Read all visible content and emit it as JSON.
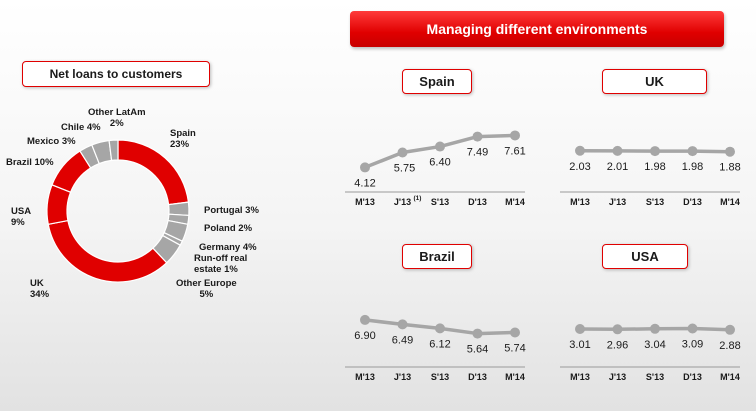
{
  "banner": {
    "title": "Managing different environments"
  },
  "colors": {
    "accent": "#e00000",
    "series": "#a6a6a6",
    "gray_slice": "#a6a6a6"
  },
  "chart_data": [
    {
      "type": "pie",
      "title": "Net loans to customers",
      "donut": true,
      "slices": [
        {
          "label": "Spain",
          "value": 23,
          "display": "Spain 23%",
          "color": "#e00000"
        },
        {
          "label": "Portugal",
          "value": 3,
          "display": "Portugal 3%",
          "color": "#a6a6a6"
        },
        {
          "label": "Poland",
          "value": 2,
          "display": "Poland 2%",
          "color": "#a6a6a6"
        },
        {
          "label": "Germany",
          "value": 4,
          "display": "Germany 4%",
          "color": "#a6a6a6"
        },
        {
          "label": "Run-off real estate",
          "value": 1,
          "display": "Run-off real estate 1%",
          "color": "#a6a6a6"
        },
        {
          "label": "Other Europe",
          "value": 5,
          "display": "Other Europe 5%",
          "color": "#a6a6a6"
        },
        {
          "label": "UK",
          "value": 34,
          "display": "UK 34%",
          "color": "#e00000"
        },
        {
          "label": "USA",
          "value": 9,
          "display": "USA 9%",
          "color": "#e00000"
        },
        {
          "label": "Brazil",
          "value": 10,
          "display": "Brazil 10%",
          "color": "#e00000"
        },
        {
          "label": "Mexico",
          "value": 3,
          "display": "Mexico 3%",
          "color": "#a6a6a6"
        },
        {
          "label": "Chile",
          "value": 4,
          "display": "Chile 4%",
          "color": "#a6a6a6"
        },
        {
          "label": "Other LatAm",
          "value": 2,
          "display": "Other LatAm 2%",
          "color": "#a6a6a6"
        }
      ],
      "label_lines": {
        "spain": [
          "Spain",
          "23%"
        ],
        "portugal": [
          "Portugal 3%"
        ],
        "poland": [
          "Poland 2%"
        ],
        "germany": [
          "Germany 4%"
        ],
        "runoff": [
          "Run-off real",
          "estate 1%"
        ],
        "other_europe": [
          "Other Europe",
          "5%"
        ],
        "uk": [
          "UK",
          "34%"
        ],
        "usa": [
          "USA",
          "9%"
        ],
        "brazil": [
          "Brazil 10%"
        ],
        "mexico": [
          "Mexico 3%"
        ],
        "chile": [
          "Chile 4%"
        ],
        "other_latam": [
          "Other LatAm",
          "2%"
        ]
      }
    },
    {
      "type": "line",
      "title": "Spain",
      "categories": [
        "M'13",
        "J'13",
        "S'13",
        "D'13",
        "M'14"
      ],
      "category_notes": [
        "",
        "(1)",
        "",
        "",
        ""
      ],
      "values": [
        4.12,
        5.75,
        6.4,
        7.49,
        7.61
      ],
      "value_labels": [
        "4.12",
        "5.75",
        "6.40",
        "7.49",
        "7.61"
      ],
      "label_position": [
        "below",
        "below",
        "below",
        "below",
        "below"
      ],
      "ylim": [
        2.2,
        9.3
      ]
    },
    {
      "type": "line",
      "title": "UK",
      "categories": [
        "M'13",
        "J'13",
        "S'13",
        "D'13",
        "M'14"
      ],
      "values": [
        2.03,
        2.01,
        1.98,
        1.98,
        1.88
      ],
      "value_labels": [
        "2.03",
        "2.01",
        "1.98",
        "1.98",
        "1.88"
      ],
      "label_position": [
        "below",
        "below",
        "below",
        "below",
        "below"
      ],
      "ylim": [
        -3.5,
        7.0
      ]
    },
    {
      "type": "line",
      "title": "Brazil",
      "categories": [
        "M'13",
        "J'13",
        "S'13",
        "D'13",
        "M'14"
      ],
      "values": [
        6.9,
        6.49,
        6.12,
        5.64,
        5.74
      ],
      "value_labels": [
        "6.90",
        "6.49",
        "6.12",
        "5.64",
        "5.74"
      ],
      "label_position": [
        "below",
        "below",
        "below",
        "below",
        "below"
      ],
      "ylim": [
        3.2,
        9.2
      ]
    },
    {
      "type": "line",
      "title": "USA",
      "categories": [
        "M'13",
        "J'13",
        "S'13",
        "D'13",
        "M'14"
      ],
      "values": [
        3.01,
        2.96,
        3.04,
        3.09,
        2.88
      ],
      "value_labels": [
        "3.01",
        "2.96",
        "3.04",
        "3.09",
        "2.88"
      ],
      "label_position": [
        "below",
        "below",
        "below",
        "below",
        "below"
      ],
      "ylim": [
        -2.0,
        8.5
      ]
    }
  ]
}
